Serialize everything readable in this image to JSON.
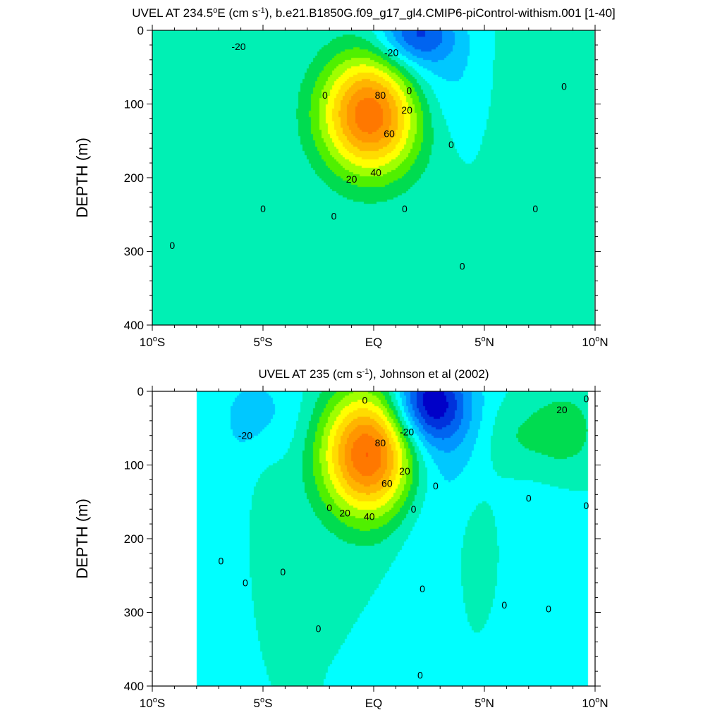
{
  "chart_data": [
    {
      "type": "contour",
      "title": "UVEL AT 234.5°E (cm s-1), b.e21.B1850G.f09_g17_gl4.CMIP6-piControl-withism.001 [1-40]",
      "title_parts": {
        "main": "UVEL AT 234.5",
        "deg": "o",
        "after_deg": "E (cm s",
        "sup": "-1",
        "rest": "), b.e21.B1850G.f09_g17_gl4.CMIP6-piControl-withism.001 [1-40]"
      },
      "ylabel": "DEPTH (m)",
      "xlabel": "",
      "xlim": [
        -10,
        10
      ],
      "ylim": [
        400,
        0
      ],
      "x_ticks": [
        {
          "v": -10,
          "text": "10",
          "deg": "o",
          "suf": "S"
        },
        {
          "v": -5,
          "text": "5",
          "deg": "o",
          "suf": "S"
        },
        {
          "v": 0,
          "text": "EQ",
          "deg": "",
          "suf": ""
        },
        {
          "v": 5,
          "text": "5",
          "deg": "o",
          "suf": "N"
        },
        {
          "v": 10,
          "text": "10",
          "deg": "o",
          "suf": "N"
        }
      ],
      "y_ticks": [
        {
          "v": 0,
          "text": "0"
        },
        {
          "v": 100,
          "text": "100"
        },
        {
          "v": 200,
          "text": "200"
        },
        {
          "v": 300,
          "text": "300"
        },
        {
          "v": 400,
          "text": "400"
        }
      ],
      "contour_interval": 10,
      "jets": [
        {
          "x": -0.1,
          "depth": 112,
          "sx": 1.6,
          "sy": 58,
          "amp": 95
        },
        {
          "x": 1.9,
          "depth": 5,
          "sx": 1.2,
          "sy": 30,
          "amp": -38
        },
        {
          "x": 2.3,
          "depth": 70,
          "sx": 2.2,
          "sy": 60,
          "amp": -18
        },
        {
          "x": -9.3,
          "depth": 60,
          "sx": 1.2,
          "sy": 45,
          "amp": 8
        },
        {
          "x": 6.5,
          "depth": 80,
          "sx": 1.5,
          "sy": 70,
          "amp": 9
        }
      ],
      "labels": [
        {
          "x": -6.1,
          "depth": 22,
          "text": "-20"
        },
        {
          "x": 0.8,
          "depth": 30,
          "text": "-20"
        },
        {
          "x": -2.2,
          "depth": 88,
          "text": "0"
        },
        {
          "x": 1.6,
          "depth": 82,
          "text": "0"
        },
        {
          "x": 0.3,
          "depth": 88,
          "text": "80"
        },
        {
          "x": 1.5,
          "depth": 108,
          "text": "20"
        },
        {
          "x": 0.7,
          "depth": 140,
          "text": "60"
        },
        {
          "x": 0.1,
          "depth": 193,
          "text": "40"
        },
        {
          "x": -1.0,
          "depth": 202,
          "text": "20"
        },
        {
          "x": 3.5,
          "depth": 155,
          "text": "0"
        },
        {
          "x": -5.0,
          "depth": 242,
          "text": "0"
        },
        {
          "x": -1.8,
          "depth": 252,
          "text": "0"
        },
        {
          "x": 1.4,
          "depth": 242,
          "text": "0"
        },
        {
          "x": 7.3,
          "depth": 242,
          "text": "0"
        },
        {
          "x": -9.1,
          "depth": 292,
          "text": "0"
        },
        {
          "x": 4.0,
          "depth": 320,
          "text": "0"
        },
        {
          "x": 8.6,
          "depth": 76,
          "text": "0"
        }
      ]
    },
    {
      "type": "contour",
      "title": "UVEL AT 235 (cm s-1), Johnson et al (2002)",
      "title_parts": {
        "main": "UVEL AT 235 (cm s",
        "deg": "",
        "after_deg": "",
        "sup": "-1",
        "rest": "), Johnson et al (2002)"
      },
      "ylabel": "DEPTH (m)",
      "xlabel": "",
      "xlim": [
        -10,
        10
      ],
      "ylim": [
        400,
        0
      ],
      "x_ticks": [
        {
          "v": -10,
          "text": "10",
          "deg": "o",
          "suf": "S"
        },
        {
          "v": -5,
          "text": "5",
          "deg": "o",
          "suf": "S"
        },
        {
          "v": 0,
          "text": "EQ",
          "deg": "",
          "suf": ""
        },
        {
          "v": 5,
          "text": "5",
          "deg": "o",
          "suf": "N"
        },
        {
          "v": 10,
          "text": "10",
          "deg": "o",
          "suf": "N"
        }
      ],
      "y_ticks": [
        {
          "v": 0,
          "text": "0"
        },
        {
          "v": 100,
          "text": "100"
        },
        {
          "v": 200,
          "text": "200"
        },
        {
          "v": 300,
          "text": "300"
        },
        {
          "v": 400,
          "text": "400"
        }
      ],
      "contour_interval": 10,
      "data_xlim": [
        -8.0,
        9.7
      ],
      "jets": [
        {
          "x": -0.2,
          "depth": 85,
          "sx": 1.5,
          "sy": 60,
          "amp": 95
        },
        {
          "x": 2.5,
          "depth": 15,
          "sx": 1.2,
          "sy": 40,
          "amp": -55
        },
        {
          "x": 3.0,
          "depth": 80,
          "sx": 2.0,
          "sy": 70,
          "amp": -15
        },
        {
          "x": -5.0,
          "depth": 30,
          "sx": 1.5,
          "sy": 50,
          "amp": -12
        },
        {
          "x": 8.5,
          "depth": 55,
          "sx": 1.2,
          "sy": 45,
          "amp": 18
        },
        {
          "x": 6.2,
          "depth": 65,
          "sx": 1.0,
          "sy": 40,
          "amp": 12
        },
        {
          "x": -4.7,
          "depth": 200,
          "sx": 0.6,
          "sy": 70,
          "amp": 10
        },
        {
          "x": 4.8,
          "depth": 190,
          "sx": 0.8,
          "sy": 80,
          "amp": 8
        },
        {
          "x": 2.3,
          "depth": 250,
          "sx": 1.0,
          "sy": 100,
          "amp": -8
        },
        {
          "x": 7.5,
          "depth": 230,
          "sx": 1.8,
          "sy": 150,
          "amp": -6
        },
        {
          "x": -6.4,
          "depth": 200,
          "sx": 0.8,
          "sy": 150,
          "amp": -5
        }
      ],
      "labels": [
        {
          "x": -5.8,
          "depth": 60,
          "text": "-20"
        },
        {
          "x": -0.4,
          "depth": 12,
          "text": "0"
        },
        {
          "x": 1.5,
          "depth": 55,
          "text": "-20"
        },
        {
          "x": 0.3,
          "depth": 70,
          "text": "80"
        },
        {
          "x": 1.4,
          "depth": 108,
          "text": "20"
        },
        {
          "x": 0.6,
          "depth": 125,
          "text": "60"
        },
        {
          "x": -0.2,
          "depth": 170,
          "text": "40"
        },
        {
          "x": -1.3,
          "depth": 165,
          "text": "20"
        },
        {
          "x": -2.0,
          "depth": 158,
          "text": "0"
        },
        {
          "x": 1.8,
          "depth": 160,
          "text": "0"
        },
        {
          "x": 2.8,
          "depth": 128,
          "text": "0"
        },
        {
          "x": 7.0,
          "depth": 145,
          "text": "0"
        },
        {
          "x": 8.5,
          "depth": 25,
          "text": "20"
        },
        {
          "x": 9.6,
          "depth": 10,
          "text": "0"
        },
        {
          "x": 9.6,
          "depth": 155,
          "text": "0"
        },
        {
          "x": -6.9,
          "depth": 230,
          "text": "0"
        },
        {
          "x": -5.8,
          "depth": 260,
          "text": "0"
        },
        {
          "x": -4.1,
          "depth": 245,
          "text": "0"
        },
        {
          "x": 2.2,
          "depth": 268,
          "text": "0"
        },
        {
          "x": 5.9,
          "depth": 290,
          "text": "0"
        },
        {
          "x": 7.9,
          "depth": 295,
          "text": "0"
        },
        {
          "x": -2.5,
          "depth": 322,
          "text": "0"
        },
        {
          "x": 2.1,
          "depth": 385,
          "text": "0"
        }
      ]
    }
  ],
  "palette": [
    "#0000c8",
    "#0032dc",
    "#0064f0",
    "#0096ff",
    "#00c8ff",
    "#00ffff",
    "#00f0b4",
    "#00dc50",
    "#50f000",
    "#a0ff00",
    "#ffff00",
    "#ffdc00",
    "#ffb400",
    "#ff9600",
    "#ff7800",
    "#ff5a00",
    "#ff3c00",
    "#ff0000",
    "#dc0000"
  ]
}
